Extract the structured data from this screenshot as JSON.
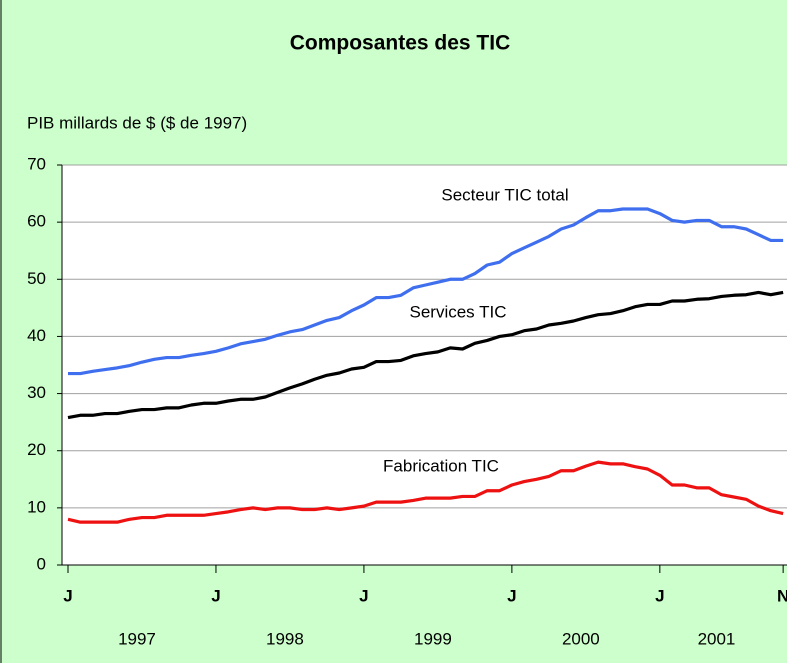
{
  "chart_data": {
    "type": "line",
    "title": "Composantes des TIC",
    "y_label": "PIB millards de $ ($ de 1997)",
    "categories": [
      "J",
      null,
      null,
      null,
      null,
      null,
      null,
      null,
      null,
      null,
      null,
      null,
      "J",
      null,
      null,
      null,
      null,
      null,
      null,
      null,
      null,
      null,
      null,
      null,
      "J",
      null,
      null,
      null,
      null,
      null,
      null,
      null,
      null,
      null,
      null,
      null,
      "J",
      null,
      null,
      null,
      null,
      null,
      null,
      null,
      null,
      null,
      null,
      null,
      "J",
      null,
      null,
      null,
      null,
      null,
      null,
      null,
      null,
      null,
      "N"
    ],
    "year_labels": [
      "1997",
      "1998",
      "1999",
      "2000",
      "2001"
    ],
    "series": [
      {
        "name": "Secteur TIC total",
        "color": "#3f6fef",
        "values": [
          33.5,
          33.5,
          33.9,
          34.2,
          34.5,
          34.9,
          35.5,
          36,
          36.3,
          36.3,
          36.7,
          37,
          37.4,
          38,
          38.7,
          39.1,
          39.5,
          40.2,
          40.8,
          41.2,
          42,
          42.8,
          43.3,
          44.5,
          45.5,
          46.8,
          46.8,
          47.2,
          48.5,
          49,
          49.5,
          50,
          50,
          51,
          52.5,
          53,
          54.5,
          55.5,
          56.5,
          57.5,
          58.8,
          59.5,
          60.8,
          62,
          62,
          62.3,
          62.3,
          62.3,
          61.5,
          60.3,
          60,
          60.3,
          60.3,
          59.2,
          59.2,
          58.8,
          57.8,
          56.8,
          56.8
        ]
      },
      {
        "name": "Services TIC",
        "color": "#000000",
        "values": [
          25.8,
          26.2,
          26.2,
          26.5,
          26.5,
          26.9,
          27.2,
          27.2,
          27.5,
          27.5,
          28,
          28.3,
          28.3,
          28.7,
          29,
          29,
          29.4,
          30.2,
          31,
          31.7,
          32.5,
          33.2,
          33.6,
          34.3,
          34.6,
          35.6,
          35.6,
          35.8,
          36.6,
          37,
          37.3,
          38,
          37.8,
          38.8,
          39.3,
          40,
          40.3,
          41,
          41.3,
          42,
          42.3,
          42.7,
          43.3,
          43.8,
          44,
          44.5,
          45.2,
          45.6,
          45.6,
          46.2,
          46.2,
          46.5,
          46.6,
          47,
          47.2,
          47.3,
          47.7,
          47.3,
          47.7
        ]
      },
      {
        "name": "Fabrication TIC",
        "color": "#ee1111",
        "values": [
          8,
          7.5,
          7.5,
          7.5,
          7.5,
          8,
          8.3,
          8.3,
          8.7,
          8.7,
          8.7,
          8.7,
          9,
          9.3,
          9.7,
          10,
          9.7,
          10,
          10,
          9.7,
          9.7,
          10,
          9.7,
          10,
          10.3,
          11,
          11,
          11,
          11.3,
          11.7,
          11.7,
          11.7,
          12,
          12,
          13,
          13,
          14,
          14.6,
          15,
          15.5,
          16.5,
          16.5,
          17.3,
          18,
          17.7,
          17.7,
          17.2,
          16.8,
          15.7,
          14,
          14,
          13.5,
          13.5,
          12.3,
          11.9,
          11.5,
          10.3,
          9.5,
          9
        ]
      }
    ],
    "ylim": [
      0,
      70
    ],
    "yticks": [
      0,
      10,
      20,
      30,
      40,
      50,
      60,
      70
    ],
    "grid": true
  }
}
